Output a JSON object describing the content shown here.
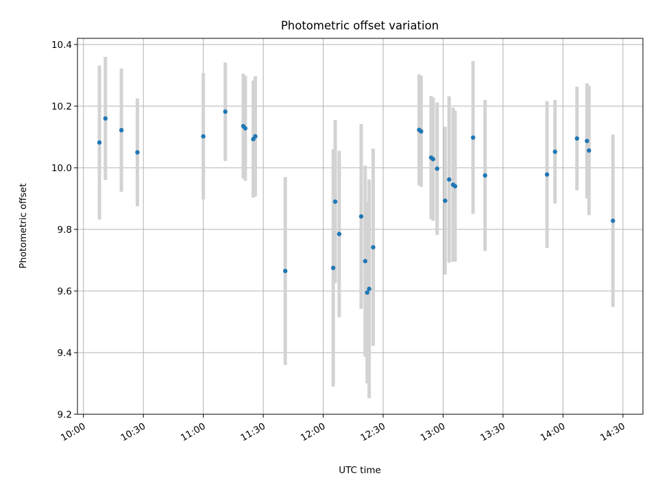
{
  "chart_data": {
    "type": "scatter",
    "title": "Photometric offset variation",
    "xlabel": "UTC time",
    "ylabel": "Photometric offset",
    "ylim": [
      9.2,
      10.42
    ],
    "xlim": [
      "09:57",
      "14:40"
    ],
    "grid": true,
    "x_ticks": [
      "10:00",
      "10:30",
      "11:00",
      "11:30",
      "12:00",
      "12:30",
      "13:00",
      "13:30",
      "14:00",
      "14:30"
    ],
    "y_ticks": [
      "9.2",
      "9.4",
      "9.6",
      "9.8",
      "10.0",
      "10.2",
      "10.4"
    ],
    "colors": {
      "points": "#1f77b4",
      "errorbars": "#d3d3d3",
      "grid": "#b0b0b0"
    },
    "series": [
      {
        "points": [
          {
            "x": "10:08",
            "y": 10.082,
            "err": 0.25
          },
          {
            "x": "10:11",
            "y": 10.16,
            "err": 0.2
          },
          {
            "x": "10:19",
            "y": 10.122,
            "err": 0.2
          },
          {
            "x": "10:27",
            "y": 10.05,
            "err": 0.175
          },
          {
            "x": "11:00",
            "y": 10.102,
            "err": 0.205
          },
          {
            "x": "11:11",
            "y": 10.182,
            "err": 0.16
          },
          {
            "x": "11:20",
            "y": 10.135,
            "err": 0.17
          },
          {
            "x": "11:21",
            "y": 10.128,
            "err": 0.17
          },
          {
            "x": "11:25",
            "y": 10.093,
            "err": 0.19
          },
          {
            "x": "11:26",
            "y": 10.102,
            "err": 0.195
          },
          {
            "x": "11:41",
            "y": 9.665,
            "err": 0.305
          },
          {
            "x": "12:05",
            "y": 9.675,
            "err": 0.385
          },
          {
            "x": "12:06",
            "y": 9.89,
            "err": 0.265
          },
          {
            "x": "12:08",
            "y": 9.785,
            "err": 0.27
          },
          {
            "x": "12:19",
            "y": 9.842,
            "err": 0.3
          },
          {
            "x": "12:21",
            "y": 9.697,
            "err": 0.31
          },
          {
            "x": "12:22",
            "y": 9.595,
            "err": 0.295
          },
          {
            "x": "12:23",
            "y": 9.607,
            "err": 0.355
          },
          {
            "x": "12:25",
            "y": 9.742,
            "err": 0.32
          },
          {
            "x": "12:48",
            "y": 10.123,
            "err": 0.18
          },
          {
            "x": "12:49",
            "y": 10.118,
            "err": 0.18
          },
          {
            "x": "12:54",
            "y": 10.033,
            "err": 0.2
          },
          {
            "x": "12:55",
            "y": 10.028,
            "err": 0.2
          },
          {
            "x": "12:57",
            "y": 9.997,
            "err": 0.215
          },
          {
            "x": "13:01",
            "y": 9.893,
            "err": 0.24
          },
          {
            "x": "13:03",
            "y": 9.962,
            "err": 0.27
          },
          {
            "x": "13:05",
            "y": 9.945,
            "err": 0.25
          },
          {
            "x": "13:06",
            "y": 9.94,
            "err": 0.245
          },
          {
            "x": "13:15",
            "y": 10.098,
            "err": 0.248
          },
          {
            "x": "13:21",
            "y": 9.975,
            "err": 0.245
          },
          {
            "x": "13:52",
            "y": 9.978,
            "err": 0.238
          },
          {
            "x": "13:56",
            "y": 10.052,
            "err": 0.168
          },
          {
            "x": "14:07",
            "y": 10.095,
            "err": 0.168
          },
          {
            "x": "14:12",
            "y": 10.087,
            "err": 0.187
          },
          {
            "x": "14:13",
            "y": 10.056,
            "err": 0.21
          },
          {
            "x": "14:25",
            "y": 9.828,
            "err": 0.28
          }
        ]
      }
    ]
  }
}
